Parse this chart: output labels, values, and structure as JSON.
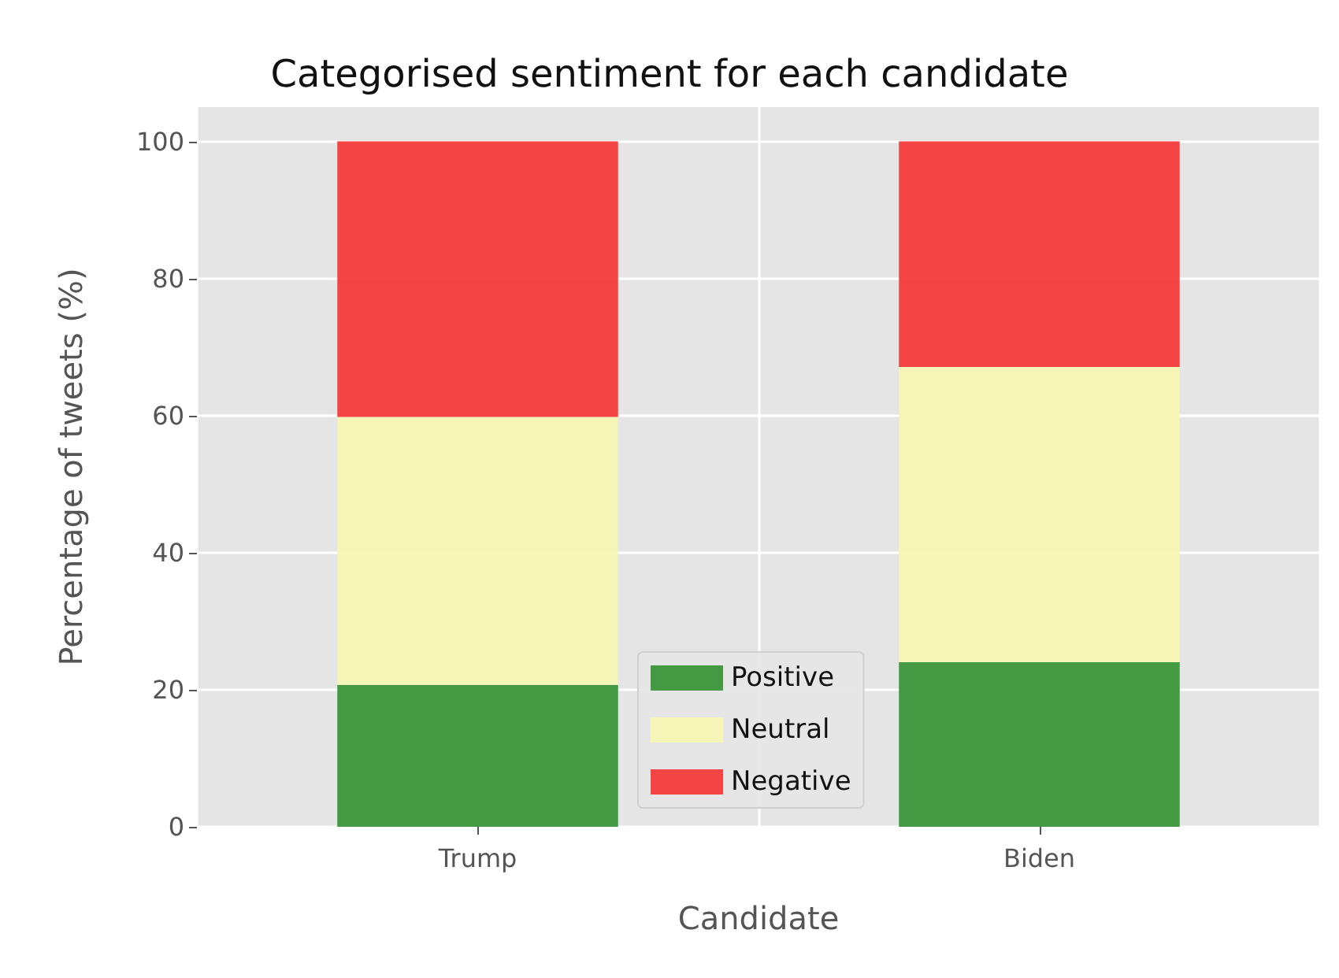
{
  "chart_data": {
    "type": "bar",
    "title": "Categorised sentiment for each candidate",
    "xlabel": "Candidate",
    "ylabel": "Percentage of tweets (%)",
    "categories": [
      "Trump",
      "Biden"
    ],
    "stacked": true,
    "series": [
      {
        "name": "Positive",
        "color": "#3a963a",
        "values": [
          20.7,
          24.0
        ]
      },
      {
        "name": "Neutral",
        "color": "#f5f5b5",
        "values": [
          39.1,
          43.1
        ]
      },
      {
        "name": "Negative",
        "color": "#f53b3b",
        "values": [
          40.2,
          32.9
        ]
      }
    ],
    "ylim": [
      0,
      105
    ],
    "yticks": [
      0,
      20,
      40,
      60,
      80,
      100
    ],
    "grid": true,
    "legend": "bottom"
  }
}
